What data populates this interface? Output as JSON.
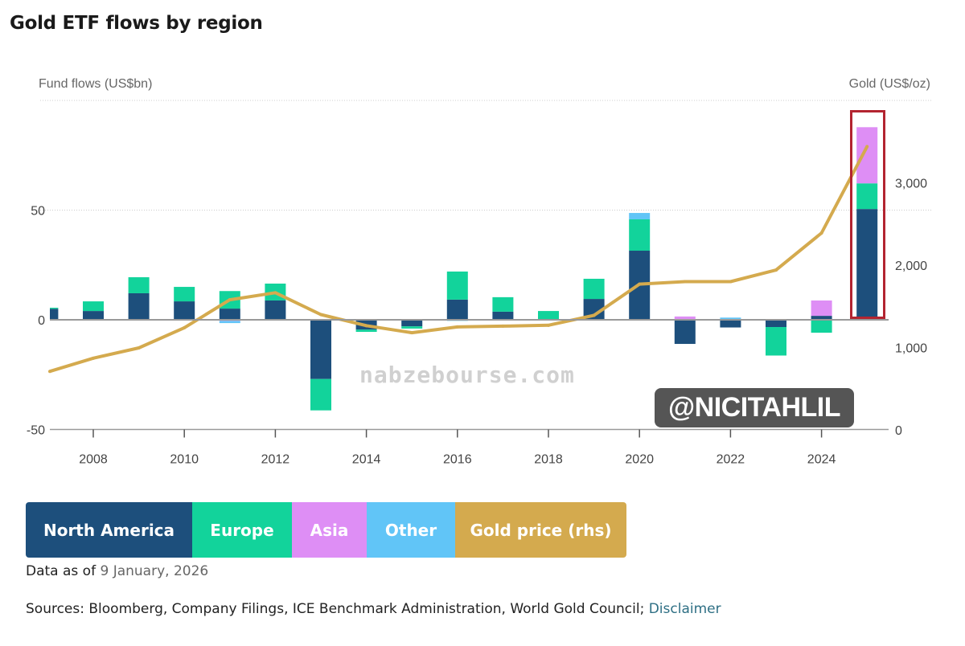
{
  "title": "Gold ETF flows by region",
  "chart_data": {
    "type": "bar",
    "stacked": true,
    "title": "Gold ETF flows by region",
    "ylabel": "Fund flows (US$bn)",
    "y2label": "Gold (US$/oz)",
    "ylim": [
      -50,
      100
    ],
    "y2lim": [
      0,
      4000
    ],
    "yticks": [
      "50",
      "0",
      "-50"
    ],
    "y2ticks": [
      "3,000",
      "2,000",
      "1,000",
      "0"
    ],
    "categories": [
      "2007",
      "2008",
      "2009",
      "2010",
      "2011",
      "2012",
      "2013",
      "2014",
      "2015",
      "2016",
      "2017",
      "2018",
      "2019",
      "2020",
      "2021",
      "2022",
      "2023",
      "2024",
      "2025"
    ],
    "xticks": [
      "2008",
      "2010",
      "2012",
      "2014",
      "2016",
      "2018",
      "2020",
      "2022",
      "2024"
    ],
    "series": [
      {
        "name": "North America",
        "color": "#1d4f7c",
        "values": [
          5.0,
          4.0,
          12.1,
          8.4,
          5.1,
          8.8,
          -27.0,
          -4.5,
          -3.0,
          9.2,
          3.7,
          0.0,
          9.5,
          31.5,
          -11.0,
          -3.5,
          -3.3,
          1.8,
          50.5
        ]
      },
      {
        "name": "Europe",
        "color": "#12d39b",
        "values": [
          0.5,
          4.4,
          7.3,
          6.6,
          8.0,
          7.7,
          -14.3,
          -1.0,
          -1.0,
          12.8,
          6.6,
          4.0,
          9.2,
          14.3,
          0.0,
          0.0,
          -13.0,
          -5.9,
          11.7
        ]
      },
      {
        "name": "Asia",
        "color": "#de8ef5",
        "values": [
          0.0,
          0.0,
          0.0,
          0.0,
          -0.5,
          0.0,
          0.0,
          0.0,
          0.0,
          0.0,
          0.0,
          0.0,
          0.0,
          0.0,
          1.5,
          0.0,
          0.0,
          7.0,
          25.6
        ]
      },
      {
        "name": "Other",
        "color": "#61c5f7",
        "values": [
          0.0,
          0.0,
          0.0,
          0.0,
          -1.0,
          0.0,
          0.0,
          0.0,
          0.0,
          -0.5,
          0.0,
          0.0,
          0.0,
          2.9,
          0.0,
          1.0,
          0.0,
          0.0,
          0.0
        ]
      }
    ],
    "line_series": {
      "name": "Gold price (rhs)",
      "color": "#d4aa4e",
      "axis": "right",
      "values": [
        710,
        870,
        995,
        1240,
        1580,
        1665,
        1400,
        1265,
        1180,
        1250,
        1260,
        1270,
        1390,
        1770,
        1800,
        1800,
        1940,
        2390,
        3440
      ]
    },
    "grid": true,
    "highlighted_category": "2025",
    "legend_position": "bottom-left"
  },
  "legend": [
    {
      "label": "North America",
      "color": "#1d4f7c"
    },
    {
      "label": "Europe",
      "color": "#12d39b"
    },
    {
      "label": "Asia",
      "color": "#de8ef5"
    },
    {
      "label": "Other",
      "color": "#61c5f7"
    },
    {
      "label": "Gold price (rhs)",
      "color": "#d4aa4e"
    }
  ],
  "note": {
    "prefix": "Data as of ",
    "date": "9 January, 2026"
  },
  "sources": {
    "text": "Sources: Bloomberg, Company Filings, ICE Benchmark Administration, World Gold Council; ",
    "link": "Disclaimer"
  },
  "watermarks": {
    "site": "nabzebourse.com",
    "handle": "@NICITAHLIL"
  }
}
